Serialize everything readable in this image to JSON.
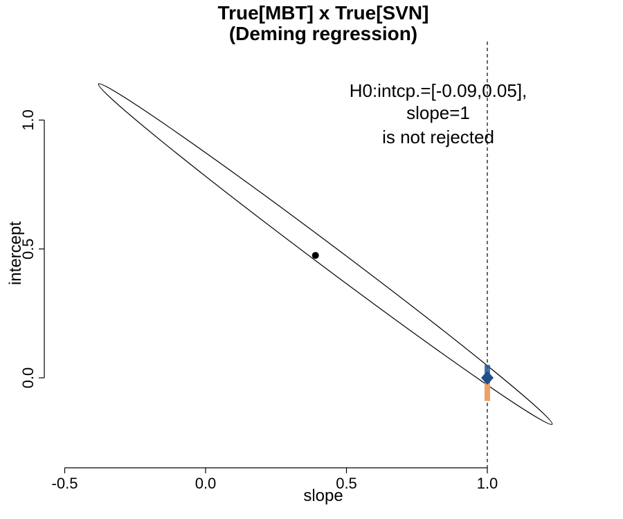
{
  "chart_data": {
    "type": "scatter",
    "title": [
      "True[MBT] x True[SVN]",
      "(Deming regression)"
    ],
    "xlabel": "slope",
    "ylabel": "intercept",
    "xlim": [
      -0.5,
      1.0
    ],
    "ylim": [
      0.0,
      1.0
    ],
    "x_ticks": [
      -0.5,
      0.0,
      0.5,
      1.0
    ],
    "x_tick_labels": [
      "-0.5",
      "0.0",
      "0.5",
      "1.0"
    ],
    "y_ticks": [
      0.0,
      0.5,
      1.0
    ],
    "y_tick_labels": [
      "0.0",
      "0.5",
      "1.0"
    ],
    "estimate": {
      "slope": 0.39,
      "intercept": 0.475
    },
    "confidence_ellipse": {
      "x_min": -0.38,
      "x_max": 1.23,
      "y_at_x_min": 1.14,
      "y_at_x_max": -0.18
    },
    "reference_line": {
      "slope": 1.0,
      "style": "dashed"
    },
    "h0_point": {
      "slope": 1.0,
      "intercept": 0.0,
      "color": "#1f4e8c"
    },
    "h0_interval_blue": {
      "slope": 1.0,
      "low": -0.02,
      "high": 0.05,
      "color": "#1f5a99"
    },
    "h0_interval_orange": {
      "slope": 1.0,
      "low": -0.09,
      "high": 0.0,
      "color": "#f0a060"
    },
    "annotation": [
      "H0:intcp.=[-0.09,0.05],",
      "slope=1",
      "is not rejected"
    ]
  }
}
